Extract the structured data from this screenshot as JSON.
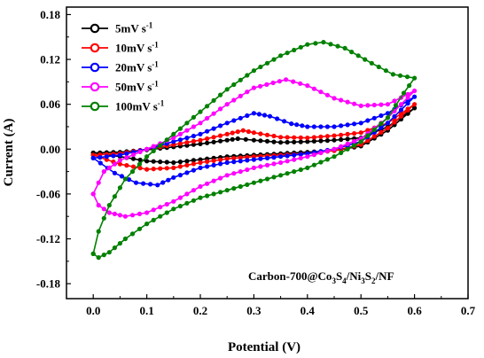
{
  "chart_data": {
    "type": "line",
    "xlabel": "Potential (V)",
    "ylabel": "Current (A)",
    "xlim": [
      -0.05,
      0.7
    ],
    "ylim": [
      -0.2,
      0.19
    ],
    "xticks": [
      "0.0",
      "0.1",
      "0.2",
      "0.3",
      "0.4",
      "0.5",
      "0.6",
      "0.7"
    ],
    "xtick_values": [
      0.0,
      0.1,
      0.2,
      0.3,
      0.4,
      0.5,
      0.6,
      0.7
    ],
    "yticks": [
      "0.18",
      "0.12",
      "0.06",
      "0.00",
      "-0.06",
      "-0.12",
      "-0.18"
    ],
    "ytick_values": [
      0.18,
      0.12,
      0.06,
      0.0,
      -0.06,
      -0.12,
      -0.18
    ],
    "grid": false,
    "legend_position": "top-left",
    "annotation": {
      "prefix": "Carbon-700@Co",
      "s1": "3",
      "mid1": "S",
      "s2": "4",
      "mid2": "/Ni",
      "s3": "3",
      "mid3": "S",
      "s4": "2",
      "suffix": "/NF"
    },
    "series": [
      {
        "name": "5mV s",
        "name_sup": "-1",
        "color": "#000000",
        "anodic": [
          [
            0.0,
            -0.005
          ],
          [
            0.05,
            -0.004
          ],
          [
            0.1,
            -0.001
          ],
          [
            0.15,
            0.003
          ],
          [
            0.2,
            0.007
          ],
          [
            0.25,
            0.012
          ],
          [
            0.27,
            0.014
          ],
          [
            0.3,
            0.012
          ],
          [
            0.35,
            0.009
          ],
          [
            0.4,
            0.01
          ],
          [
            0.45,
            0.012
          ],
          [
            0.5,
            0.015
          ],
          [
            0.55,
            0.03
          ],
          [
            0.6,
            0.055
          ]
        ],
        "cathodic": [
          [
            0.6,
            0.055
          ],
          [
            0.55,
            0.025
          ],
          [
            0.5,
            0.004
          ],
          [
            0.45,
            -0.002
          ],
          [
            0.4,
            -0.004
          ],
          [
            0.35,
            -0.006
          ],
          [
            0.3,
            -0.008
          ],
          [
            0.25,
            -0.01
          ],
          [
            0.2,
            -0.014
          ],
          [
            0.15,
            -0.018
          ],
          [
            0.1,
            -0.016
          ],
          [
            0.05,
            -0.01
          ],
          [
            0.0,
            -0.005
          ]
        ]
      },
      {
        "name": "10mV s",
        "name_sup": "-1",
        "color": "#ff0000",
        "anodic": [
          [
            0.0,
            -0.008
          ],
          [
            0.05,
            -0.006
          ],
          [
            0.1,
            0.0
          ],
          [
            0.15,
            0.006
          ],
          [
            0.2,
            0.012
          ],
          [
            0.25,
            0.02
          ],
          [
            0.28,
            0.025
          ],
          [
            0.3,
            0.022
          ],
          [
            0.35,
            0.016
          ],
          [
            0.4,
            0.015
          ],
          [
            0.45,
            0.018
          ],
          [
            0.5,
            0.022
          ],
          [
            0.55,
            0.035
          ],
          [
            0.6,
            0.06
          ]
        ],
        "cathodic": [
          [
            0.6,
            0.06
          ],
          [
            0.55,
            0.028
          ],
          [
            0.5,
            0.006
          ],
          [
            0.45,
            -0.002
          ],
          [
            0.4,
            -0.006
          ],
          [
            0.35,
            -0.008
          ],
          [
            0.3,
            -0.01
          ],
          [
            0.25,
            -0.013
          ],
          [
            0.2,
            -0.018
          ],
          [
            0.15,
            -0.025
          ],
          [
            0.1,
            -0.027
          ],
          [
            0.05,
            -0.02
          ],
          [
            0.0,
            -0.008
          ]
        ]
      },
      {
        "name": "20mV s",
        "name_sup": "-1",
        "color": "#0000ff",
        "anodic": [
          [
            0.0,
            -0.012
          ],
          [
            0.05,
            -0.008
          ],
          [
            0.1,
            0.0
          ],
          [
            0.15,
            0.01
          ],
          [
            0.2,
            0.02
          ],
          [
            0.25,
            0.035
          ],
          [
            0.3,
            0.048
          ],
          [
            0.33,
            0.044
          ],
          [
            0.37,
            0.034
          ],
          [
            0.4,
            0.03
          ],
          [
            0.45,
            0.03
          ],
          [
            0.5,
            0.035
          ],
          [
            0.55,
            0.048
          ],
          [
            0.6,
            0.07
          ]
        ],
        "cathodic": [
          [
            0.6,
            0.07
          ],
          [
            0.55,
            0.035
          ],
          [
            0.5,
            0.01
          ],
          [
            0.45,
            0.0
          ],
          [
            0.4,
            -0.006
          ],
          [
            0.35,
            -0.01
          ],
          [
            0.3,
            -0.014
          ],
          [
            0.25,
            -0.018
          ],
          [
            0.2,
            -0.025
          ],
          [
            0.15,
            -0.038
          ],
          [
            0.12,
            -0.048
          ],
          [
            0.08,
            -0.045
          ],
          [
            0.04,
            -0.032
          ],
          [
            0.0,
            -0.012
          ]
        ]
      },
      {
        "name": "50mV s",
        "name_sup": "-1",
        "color": "#ff00ff",
        "anodic": [
          [
            0.0,
            -0.06
          ],
          [
            0.02,
            -0.03
          ],
          [
            0.05,
            -0.015
          ],
          [
            0.1,
            0.0
          ],
          [
            0.15,
            0.015
          ],
          [
            0.2,
            0.035
          ],
          [
            0.25,
            0.06
          ],
          [
            0.3,
            0.082
          ],
          [
            0.36,
            0.093
          ],
          [
            0.4,
            0.085
          ],
          [
            0.45,
            0.068
          ],
          [
            0.5,
            0.058
          ],
          [
            0.55,
            0.06
          ],
          [
            0.6,
            0.078
          ]
        ],
        "cathodic": [
          [
            0.6,
            0.078
          ],
          [
            0.55,
            0.042
          ],
          [
            0.5,
            0.014
          ],
          [
            0.45,
            0.0
          ],
          [
            0.4,
            -0.01
          ],
          [
            0.35,
            -0.018
          ],
          [
            0.3,
            -0.025
          ],
          [
            0.25,
            -0.035
          ],
          [
            0.2,
            -0.05
          ],
          [
            0.15,
            -0.07
          ],
          [
            0.1,
            -0.085
          ],
          [
            0.06,
            -0.09
          ],
          [
            0.03,
            -0.085
          ],
          [
            0.01,
            -0.075
          ],
          [
            0.0,
            -0.06
          ]
        ]
      },
      {
        "name": "100mV s",
        "name_sup": "-1",
        "color": "#008000",
        "anodic": [
          [
            0.0,
            -0.14
          ],
          [
            0.01,
            -0.11
          ],
          [
            0.03,
            -0.075
          ],
          [
            0.06,
            -0.04
          ],
          [
            0.1,
            -0.01
          ],
          [
            0.15,
            0.02
          ],
          [
            0.2,
            0.05
          ],
          [
            0.25,
            0.08
          ],
          [
            0.3,
            0.105
          ],
          [
            0.35,
            0.125
          ],
          [
            0.4,
            0.14
          ],
          [
            0.43,
            0.143
          ],
          [
            0.47,
            0.135
          ],
          [
            0.52,
            0.115
          ],
          [
            0.56,
            0.1
          ],
          [
            0.6,
            0.095
          ]
        ],
        "cathodic": [
          [
            0.6,
            0.095
          ],
          [
            0.58,
            0.075
          ],
          [
            0.55,
            0.042
          ],
          [
            0.5,
            0.01
          ],
          [
            0.45,
            -0.01
          ],
          [
            0.4,
            -0.025
          ],
          [
            0.35,
            -0.035
          ],
          [
            0.3,
            -0.045
          ],
          [
            0.25,
            -0.055
          ],
          [
            0.2,
            -0.065
          ],
          [
            0.15,
            -0.08
          ],
          [
            0.1,
            -0.1
          ],
          [
            0.06,
            -0.12
          ],
          [
            0.03,
            -0.138
          ],
          [
            0.01,
            -0.145
          ],
          [
            0.0,
            -0.14
          ]
        ]
      }
    ]
  }
}
